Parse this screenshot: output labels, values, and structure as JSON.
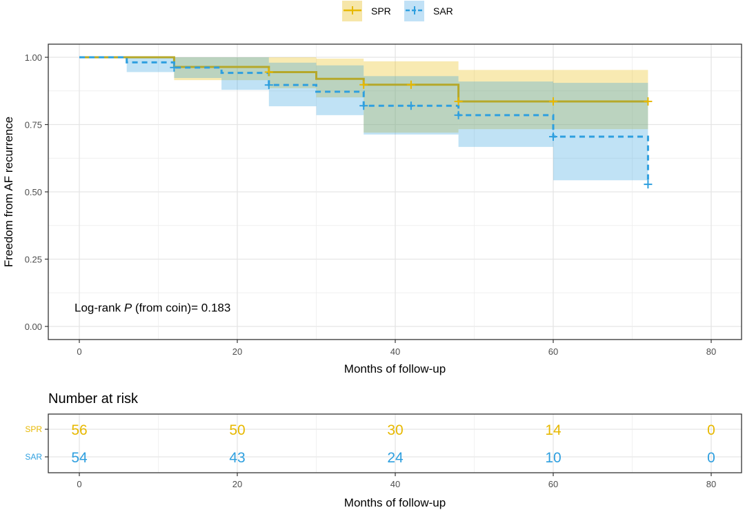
{
  "chart_data": {
    "type": "line",
    "subtype": "kaplan-meier",
    "title": "",
    "xlabel": "Months of follow-up",
    "ylabel": "Freedom from AF recurrence",
    "xlim": [
      -3,
      84
    ],
    "ylim": [
      -0.04,
      1.04
    ],
    "x_ticks": [
      0,
      20,
      40,
      60,
      80
    ],
    "x_tick_labels": [
      "0",
      "20",
      "40",
      "60",
      "80"
    ],
    "y_ticks": [
      0,
      0.25,
      0.5,
      0.75,
      1.0
    ],
    "y_tick_labels": [
      "0.00",
      "0.25",
      "0.50",
      "0.75",
      "1.00"
    ],
    "grid": true,
    "legend": {
      "position": "top",
      "entries": [
        {
          "label": "SPR",
          "color": "#E7B800",
          "linestyle": "solid"
        },
        {
          "label": "SAR",
          "color": "#2E9FDF",
          "linestyle": "dashed"
        }
      ]
    },
    "annotation": {
      "prefix": "Log-rank ",
      "italic": "P",
      "suffix": " (from coin)= 0.183",
      "x": 0,
      "y": 0.07
    },
    "series": [
      {
        "name": "SPR",
        "color": "#E7B800",
        "line_color": "#B5A82A",
        "dash": false,
        "steps": [
          {
            "x": 0,
            "surv": 1.0,
            "lower": 1.0,
            "upper": 1.0
          },
          {
            "x": 12,
            "surv": 0.964,
            "lower": 0.915,
            "upper": 1.0
          },
          {
            "x": 24,
            "surv": 0.945,
            "lower": 0.885,
            "upper": 1.0
          },
          {
            "x": 30,
            "surv": 0.92,
            "lower": 0.851,
            "upper": 0.995
          },
          {
            "x": 36,
            "surv": 0.898,
            "lower": 0.72,
            "upper": 0.985
          },
          {
            "x": 48,
            "surv": 0.836,
            "lower": 0.733,
            "upper": 0.953
          }
        ],
        "end_x": 72,
        "censor_x": [
          24,
          36,
          42,
          48,
          60,
          72
        ]
      },
      {
        "name": "SAR",
        "color": "#2E9FDF",
        "line_color": "#2E9FDF",
        "dash": true,
        "steps": [
          {
            "x": 0,
            "surv": 1.0,
            "lower": 1.0,
            "upper": 1.0
          },
          {
            "x": 6,
            "surv": 0.981,
            "lower": 0.945,
            "upper": 1.0
          },
          {
            "x": 12,
            "surv": 0.962,
            "lower": 0.923,
            "upper": 1.0
          },
          {
            "x": 18,
            "surv": 0.942,
            "lower": 0.879,
            "upper": 1.0
          },
          {
            "x": 24,
            "surv": 0.897,
            "lower": 0.818,
            "upper": 0.98
          },
          {
            "x": 30,
            "surv": 0.872,
            "lower": 0.785,
            "upper": 0.97
          },
          {
            "x": 36,
            "surv": 0.82,
            "lower": 0.713,
            "upper": 0.93
          },
          {
            "x": 48,
            "surv": 0.785,
            "lower": 0.667,
            "upper": 0.91
          },
          {
            "x": 60,
            "surv": 0.705,
            "lower": 0.543,
            "upper": 0.905
          },
          {
            "x": 72,
            "surv": 0.528,
            "lower": 0.528,
            "upper": 0.528
          }
        ],
        "end_x": 72,
        "censor_x": [
          12,
          24,
          36,
          42,
          48,
          60,
          72
        ]
      }
    ],
    "risk_table": {
      "title": "Number at risk",
      "xlabel": "Months of follow-up",
      "times": [
        0,
        20,
        40,
        60,
        80
      ],
      "time_labels": [
        "0",
        "20",
        "40",
        "60",
        "80"
      ],
      "rows": [
        {
          "name": "SPR",
          "color": "#E7B800",
          "values": [
            "56",
            "50",
            "30",
            "14",
            "0"
          ]
        },
        {
          "name": "SAR",
          "color": "#2E9FDF",
          "values": [
            "54",
            "43",
            "24",
            "10",
            "0"
          ]
        }
      ]
    }
  }
}
